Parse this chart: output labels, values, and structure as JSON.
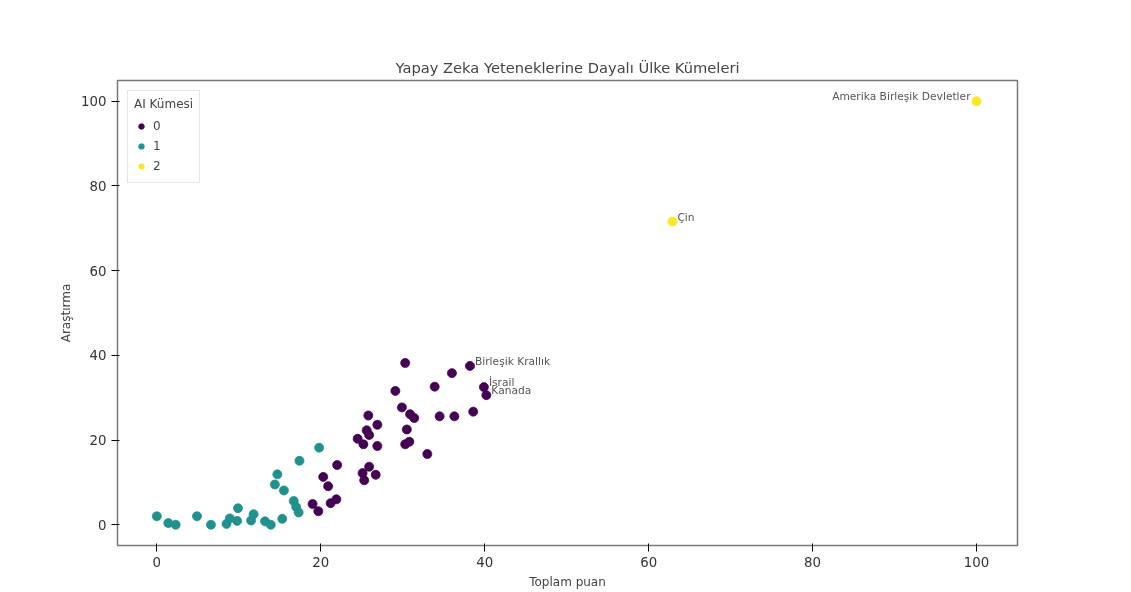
{
  "chart_data": {
    "type": "scatter",
    "title": "Yapay Zeka Yeteneklerine Dayalı Ülke Kümeleri",
    "xlabel": "Toplam puan",
    "ylabel": "Araştırma",
    "legend_title": "AI Kümesi",
    "legend": "top left",
    "grid": false,
    "marker": "circle",
    "xlim": [
      -4.8,
      105
    ],
    "ylim": [
      -4.9,
      104.9
    ],
    "xticks": [
      0,
      20,
      40,
      60,
      80,
      100
    ],
    "yticks": [
      0,
      20,
      40,
      60,
      80,
      100
    ],
    "series": [
      {
        "name": "0",
        "color": "#440154",
        "x": [
          30.3,
          36.0,
          29.1,
          33.9,
          39.9,
          40.2,
          29.9,
          30.9,
          31.4,
          34.5,
          36.3,
          38.6,
          25.8,
          26.9,
          25.6,
          25.9,
          24.5,
          25.2,
          26.9,
          30.5,
          30.3,
          30.8,
          33.0,
          22.0,
          20.3,
          20.9,
          19.0,
          19.7,
          21.2,
          21.9,
          25.9,
          25.1,
          25.3,
          26.7,
          38.2
        ],
        "values": [
          38.2,
          35.8,
          31.6,
          32.6,
          32.5,
          30.6,
          27.7,
          26.1,
          25.2,
          25.6,
          25.6,
          26.7,
          25.8,
          23.6,
          22.3,
          21.2,
          20.3,
          19.0,
          18.6,
          22.5,
          19.0,
          19.6,
          16.7,
          14.1,
          11.3,
          9.1,
          4.9,
          3.2,
          5.1,
          6.0,
          13.7,
          12.2,
          10.5,
          11.8,
          37.5
        ]
      },
      {
        "name": "1",
        "color": "#21918c",
        "x": [
          0,
          1.4,
          2.3,
          4.9,
          6.6,
          8.5,
          8.9,
          9.8,
          9.9,
          11.5,
          11.8,
          13.2,
          13.9,
          15.3,
          14.4,
          14.7,
          15.5,
          16.7,
          17.0,
          17.3,
          17.4,
          19.8
        ],
        "values": [
          2.0,
          0.4,
          0,
          2.0,
          0,
          0.2,
          1.5,
          0.9,
          3.9,
          1.0,
          2.5,
          0.8,
          0,
          1.4,
          9.5,
          11.9,
          8.1,
          5.6,
          4.2,
          2.9,
          15.1,
          18.2
        ]
      },
      {
        "name": "2",
        "color": "#fde725",
        "x": [
          62.9,
          100
        ],
        "values": [
          71.6,
          100
        ]
      }
    ],
    "annotations": [
      {
        "text": "Amerika Birleşik Devletler",
        "x": 100,
        "y": 100
      },
      {
        "text": "Çin",
        "x": 62.9,
        "y": 71.6
      },
      {
        "text": "Birleşik Krallık",
        "x": 38.2,
        "y": 37.5
      },
      {
        "text": "İsrail",
        "x": 39.9,
        "y": 32.5
      },
      {
        "text": "Kanada",
        "x": 40.2,
        "y": 30.6
      }
    ]
  }
}
